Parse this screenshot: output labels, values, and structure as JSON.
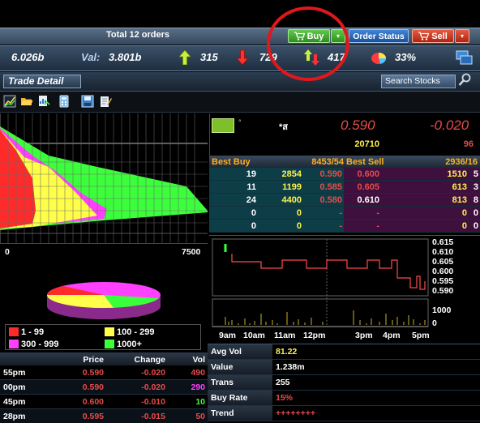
{
  "orders_bar": {
    "total_orders": "Total 12 orders"
  },
  "buttons": {
    "buy": "Buy",
    "order_status": "Order Status",
    "sell": "Sell",
    "dropdown_glyph": "▾"
  },
  "stats_bar": {
    "value_left": "6.026b",
    "val_label": "Val:",
    "val_value": "3.801b",
    "up_count": "315",
    "down_count": "729",
    "unchanged_count": "417",
    "pie_percent": "33%"
  },
  "trade_detail": {
    "tab_label": "Trade Detail",
    "search_label": "Search Stocks"
  },
  "depth_chart": {
    "axis_left": "0",
    "axis_right": "7500"
  },
  "legend": [
    {
      "label": "1 - 99",
      "color": "#ff2b2b"
    },
    {
      "label": "100 - 299",
      "color": "#ffff4a"
    },
    {
      "label": "300 - 999",
      "color": "#ff40ff"
    },
    {
      "label": "1000+",
      "color": "#3cff3c"
    }
  ],
  "trades": {
    "headers": {
      "time": "",
      "price": "Price",
      "change": "Change",
      "vol": "Vol"
    },
    "rows": [
      {
        "time": "55pm",
        "price": "0.590",
        "change": "-0.020",
        "vol": "490",
        "vol_color": "#e64b4b"
      },
      {
        "time": "00pm",
        "price": "0.590",
        "change": "-0.020",
        "vol": "290",
        "vol_color": "#ff40ff"
      },
      {
        "time": "45pm",
        "price": "0.600",
        "change": "-0.010",
        "vol": "10",
        "vol_color": "#3cff3c"
      },
      {
        "time": "28pm",
        "price": "0.595",
        "change": "-0.015",
        "vol": "50",
        "vol_color": "#e64b4b"
      }
    ]
  },
  "quote": {
    "symbol_dot": "°",
    "symbol_name": "*ส",
    "last_price": "0.590",
    "change": "-0.020",
    "volume": "20710",
    "change_volume": "96"
  },
  "bid_offer": {
    "best_buy_label": "Best Buy",
    "best_buy_totals": "8453/54",
    "best_sell_label": "Best Sell",
    "best_sell_totals": "2936/16",
    "rows": [
      {
        "bid_q": "19",
        "bid_v": "2854",
        "bid_p": "0.590",
        "off_p": "0.600",
        "off_v": "1510",
        "off_q": "5",
        "off_p_color": "#e64b4b"
      },
      {
        "bid_q": "11",
        "bid_v": "1199",
        "bid_p": "0.585",
        "off_p": "0.605",
        "off_v": "613",
        "off_q": "3",
        "off_p_color": "#e64b4b"
      },
      {
        "bid_q": "24",
        "bid_v": "4400",
        "bid_p": "0.580",
        "off_p": "0.610",
        "off_v": "813",
        "off_q": "8",
        "off_p_color": "#ffffff"
      },
      {
        "bid_q": "0",
        "bid_v": "0",
        "bid_p": "-",
        "off_p": "-",
        "off_v": "0",
        "off_q": "0",
        "off_p_color": "#e64b4b"
      },
      {
        "bid_q": "0",
        "bid_v": "0",
        "bid_p": "-",
        "off_p": "-",
        "off_v": "0",
        "off_q": "0",
        "off_p_color": "#e64b4b"
      }
    ]
  },
  "intraday": {
    "price_ticks": [
      "0.615",
      "0.610",
      "0.605",
      "0.600",
      "0.595",
      "0.590"
    ],
    "volume_ticks": [
      "1000",
      "0"
    ],
    "time_ticks": [
      "9am",
      "10am",
      "11am",
      "12pm",
      "3pm",
      "4pm",
      "5pm"
    ]
  },
  "summary": [
    {
      "label": "Avg Vol",
      "value": "81.22",
      "color": "#fff34a"
    },
    {
      "label": "Value",
      "value": "1.238m",
      "color": "#ffffff"
    },
    {
      "label": "Trans",
      "value": "255",
      "color": "#ffffff"
    },
    {
      "label": "Buy Rate",
      "value": "15%",
      "color": "#e64b4b"
    },
    {
      "label": "Trend",
      "value": "++++++++",
      "color": "#e64b4b"
    }
  ]
}
